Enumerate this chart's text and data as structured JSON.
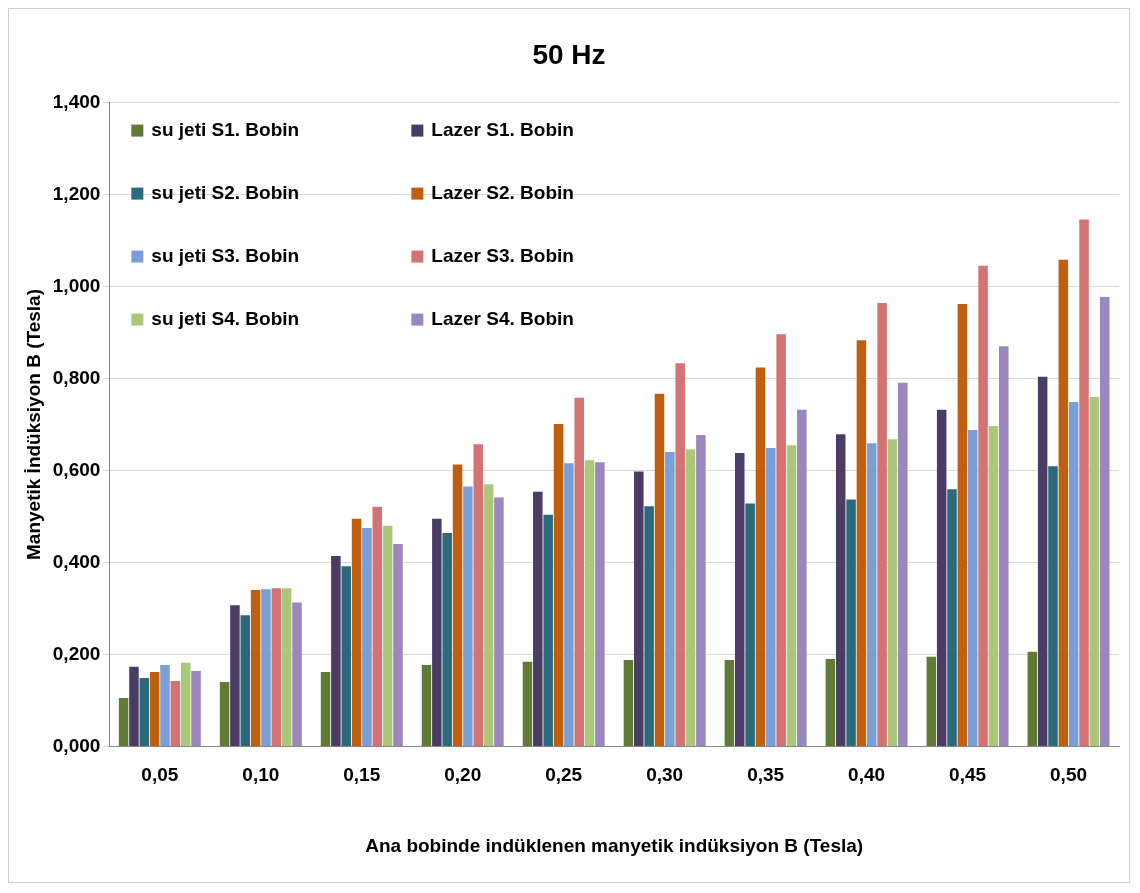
{
  "chart_data": {
    "type": "bar",
    "title": "50 Hz",
    "xlabel": "Ana bobinde indüklenen manyetik indüksiyon B (Tesla)",
    "ylabel": "Manyetik İndüksiyon B (Tesla)",
    "categories": [
      "0,05",
      "0,10",
      "0,15",
      "0,20",
      "0,25",
      "0,30",
      "0,35",
      "0,40",
      "0,45",
      "0,50"
    ],
    "ylim": [
      0,
      1.4
    ],
    "yticks": [
      {
        "value": 0,
        "label": "0,000"
      },
      {
        "value": 0.2,
        "label": "0,200"
      },
      {
        "value": 0.4,
        "label": "0,400"
      },
      {
        "value": 0.6,
        "label": "0,600"
      },
      {
        "value": 0.8,
        "label": "0,800"
      },
      {
        "value": 1,
        "label": "1,000"
      },
      {
        "value": 1.2,
        "label": "1,200"
      },
      {
        "value": 1.4,
        "label": "1,400"
      }
    ],
    "grid": "y",
    "legend": "top left",
    "series": [
      {
        "name": "su jeti S1. Bobin",
        "color": "#607b35",
        "values": [
          0.105,
          0.14,
          0.162,
          0.177,
          0.184,
          0.188,
          0.188,
          0.19,
          0.195,
          0.206
        ]
      },
      {
        "name": "Lazer S1. Bobin",
        "color": "#4b3c66",
        "values": [
          0.173,
          0.307,
          0.414,
          0.495,
          0.554,
          0.598,
          0.638,
          0.679,
          0.732,
          0.804
        ]
      },
      {
        "name": "su jeti S2. Bobin",
        "color": "#2a6a7b",
        "values": [
          0.149,
          0.285,
          0.392,
          0.464,
          0.504,
          0.522,
          0.528,
          0.537,
          0.559,
          0.609
        ]
      },
      {
        "name": "Lazer S2. Bobin",
        "color": "#c0600f",
        "values": [
          0.162,
          0.34,
          0.495,
          0.613,
          0.701,
          0.767,
          0.824,
          0.883,
          0.962,
          1.058
        ]
      },
      {
        "name": "su jeti S3. Bobin",
        "color": "#7a9fd6",
        "values": [
          0.177,
          0.342,
          0.475,
          0.565,
          0.616,
          0.64,
          0.649,
          0.659,
          0.688,
          0.749
        ]
      },
      {
        "name": "Lazer S3. Bobin",
        "color": "#d37373",
        "values": [
          0.142,
          0.344,
          0.521,
          0.657,
          0.758,
          0.833,
          0.896,
          0.964,
          1.045,
          1.146
        ]
      },
      {
        "name": "su jeti S4. Bobin",
        "color": "#aac77a",
        "values": [
          0.182,
          0.344,
          0.48,
          0.57,
          0.622,
          0.646,
          0.655,
          0.668,
          0.697,
          0.76
        ]
      },
      {
        "name": "Lazer S4. Bobin",
        "color": "#9b86be",
        "values": [
          0.164,
          0.313,
          0.44,
          0.541,
          0.618,
          0.677,
          0.732,
          0.791,
          0.87,
          0.977
        ]
      }
    ]
  }
}
